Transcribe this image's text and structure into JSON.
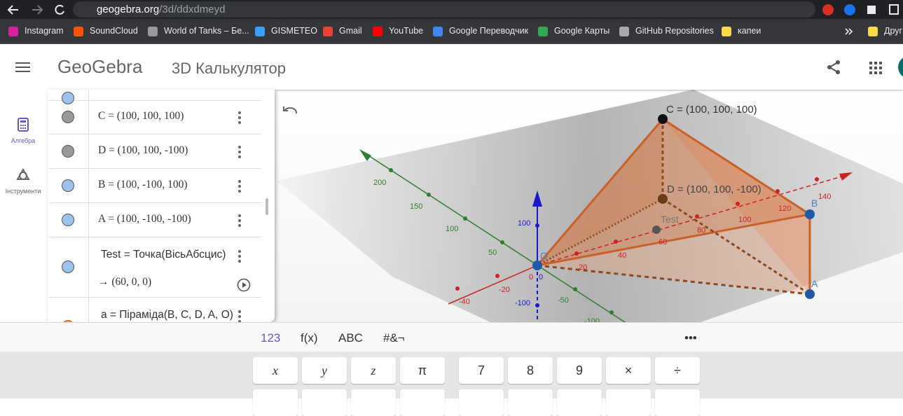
{
  "browser": {
    "url_host": "geogebra.org",
    "url_path": "/3d/ddxdmeyd",
    "bookmarks": [
      "Instagram",
      "SoundCloud",
      "World of Tanks – Бе...",
      "GISMETEO",
      "Gmail",
      "YouTube",
      "Google Переводчик",
      "Google Карты",
      "GitHub Repositories",
      "капеи",
      "Други"
    ]
  },
  "header": {
    "logo": "GeoGebra",
    "title": "3D Калькулятор"
  },
  "sidebar": {
    "algebra": "Алгебра",
    "tools": "Інструменти"
  },
  "algebra": {
    "rows": [
      "C = (100, 100, 100)",
      "D = (100, 100, -100)",
      "B = (100, -100, 100)",
      "A = (100, -100, -100)"
    ],
    "test_definition": "Test = Точка(ВісьАбсцис)",
    "test_result": "→ (60, 0, 0)",
    "pyramid": "a = Піраміда(B, C, D, A, O)"
  },
  "graphics": {
    "point_labels": {
      "C": "C = (100, 100, 100)",
      "D": "D = (100, 100, -100)",
      "B": "B",
      "A": "A",
      "O": "O",
      "Test": "Test"
    },
    "green_axis_ticks": [
      "200",
      "150",
      "100",
      "50",
      "-50",
      "-100"
    ],
    "red_axis_ticks": [
      "-40",
      "-20",
      "0",
      "20",
      "40",
      "60",
      "80",
      "100",
      "120",
      "140"
    ],
    "blue_axis_ticks": [
      "100",
      "0",
      "-100"
    ]
  },
  "keyboard": {
    "tabs": [
      "123",
      "f(x)",
      "ABC",
      "#&¬",
      "•••"
    ],
    "keys": [
      "x",
      "y",
      "z",
      "π",
      "7",
      "8",
      "9",
      "×",
      "÷"
    ]
  }
}
